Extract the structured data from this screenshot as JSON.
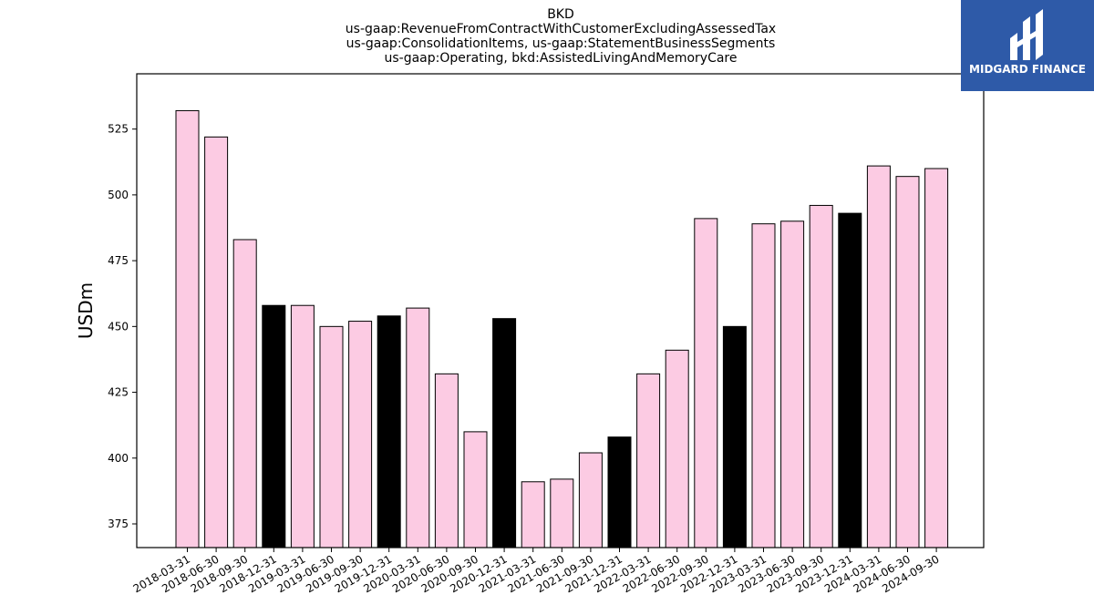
{
  "chart_data": {
    "type": "bar",
    "title_lines": [
      "BKD",
      "us-gaap:RevenueFromContractWithCustomerExcludingAssessedTax",
      "us-gaap:ConsolidationItems, us-gaap:StatementBusinessSegments",
      "us-gaap:Operating, bkd:AssistedLivingAndMemoryCare"
    ],
    "ylabel": "USDm",
    "xlabel": "",
    "ylim": [
      366,
      546
    ],
    "yticks": [
      375,
      400,
      425,
      450,
      475,
      500,
      525
    ],
    "grid": false,
    "categories": [
      "2018-03-31",
      "2018-06-30",
      "2018-09-30",
      "2018-12-31",
      "2019-03-31",
      "2019-06-30",
      "2019-09-30",
      "2019-12-31",
      "2020-03-31",
      "2020-06-30",
      "2020-09-30",
      "2020-12-31",
      "2021-03-31",
      "2021-06-30",
      "2021-09-30",
      "2021-12-31",
      "2022-03-31",
      "2022-06-30",
      "2022-09-30",
      "2022-12-31",
      "2023-03-31",
      "2023-06-30",
      "2023-09-30",
      "2023-12-31",
      "2024-03-31",
      "2024-06-30",
      "2024-09-30"
    ],
    "values": [
      532,
      522,
      483,
      458,
      458,
      450,
      452,
      454,
      457,
      432,
      410,
      453,
      391,
      392,
      402,
      408,
      432,
      441,
      491,
      450,
      489,
      490,
      496,
      493,
      511,
      507,
      510
    ],
    "colors": {
      "quarter": "#fccbe3",
      "year_end": "#000000",
      "edge": "#000000"
    }
  },
  "logo": {
    "text": "MIDGARD FINANCE",
    "background": "#2e5aa8"
  }
}
